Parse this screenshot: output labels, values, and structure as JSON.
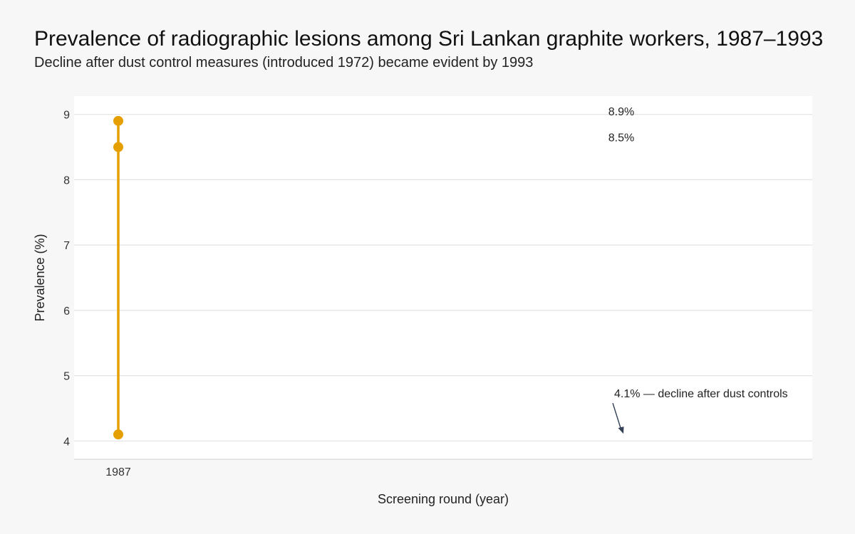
{
  "title": "Prevalence of radiographic lesions among Sri Lankan graphite workers, 1987–1993",
  "subtitle": "Decline after dust control measures (introduced 1972) became evident by 1993",
  "chart_data": {
    "type": "line",
    "title": "Prevalence of radiographic lesions among Sri Lankan graphite workers, 1987–1993",
    "subtitle": "Decline after dust control measures (introduced 1972) became evident by 1993",
    "xlabel": "Screening round (year)",
    "ylabel": "Prevalence (%)",
    "ylim": [
      3.72,
      9.28
    ],
    "yticks": [
      4,
      5,
      6,
      7,
      8,
      9
    ],
    "xticks": [
      "1987"
    ],
    "grid": true,
    "legend": "none",
    "color": "#E69F00",
    "series": [
      {
        "x": [
          "1987",
          "1987",
          "1987"
        ],
        "values": [
          8.9,
          8.5,
          4.1
        ]
      }
    ],
    "labels": [
      {
        "text": "8.9%",
        "value": 8.9
      },
      {
        "text": "8.5%",
        "value": 8.5
      }
    ],
    "annotation": {
      "text": "4.1% — decline after dust controls",
      "value": 4.1
    }
  }
}
